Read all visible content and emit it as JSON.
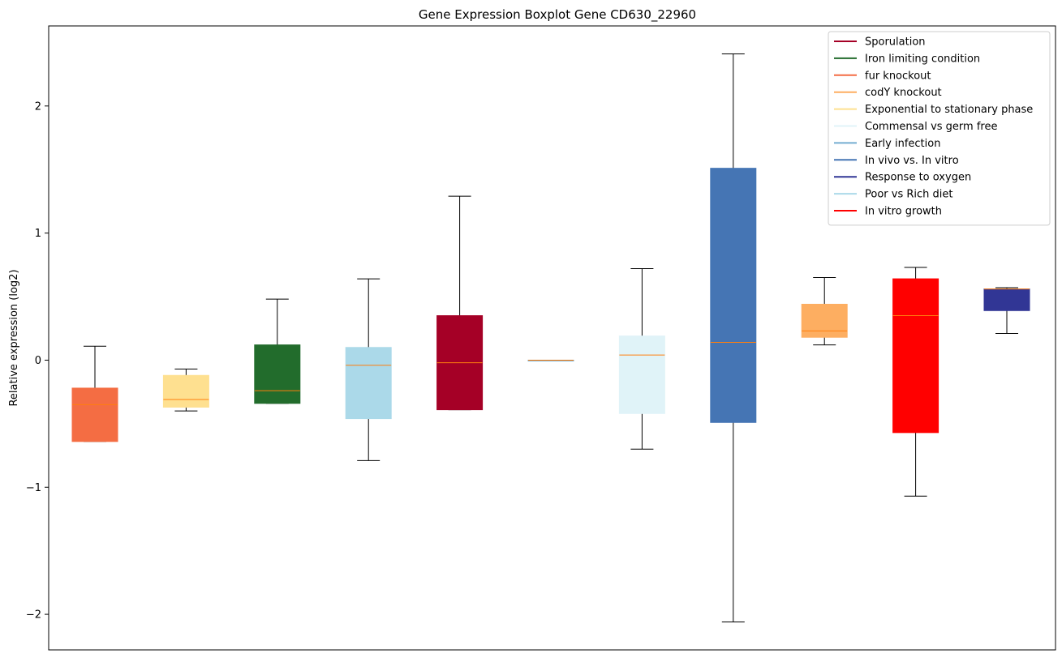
{
  "chart_data": {
    "type": "boxplot",
    "title": "Gene Expression Boxplot Gene CD630_22960",
    "xlabel": "",
    "ylabel": "Relative expression (log2)",
    "ylim": [
      -2.28,
      2.63
    ],
    "yticks": [
      2,
      1,
      0,
      -1,
      -2
    ],
    "ytick_labels": [
      "2",
      "1",
      "0",
      "−1",
      "−2"
    ],
    "median_color": "#ff7f0e",
    "boxes": [
      {
        "condition": "fur knockout",
        "color": "#f46d43",
        "whisker_low": -0.64,
        "q1": -0.64,
        "median": -0.35,
        "q3": -0.22,
        "whisker_high": 0.11
      },
      {
        "condition": "Exponential to stationary phase",
        "color": "#fee090",
        "whisker_low": -0.4,
        "q1": -0.37,
        "median": -0.31,
        "q3": -0.12,
        "whisker_high": -0.07
      },
      {
        "condition": "Iron limiting condition",
        "color": "#226c2c",
        "whisker_low": -0.34,
        "q1": -0.34,
        "median": -0.24,
        "q3": 0.12,
        "whisker_high": 0.48
      },
      {
        "condition": "Poor vs Rich diet",
        "color": "#abd9e9",
        "whisker_low": -0.79,
        "q1": -0.46,
        "median": -0.04,
        "q3": 0.1,
        "whisker_high": 0.64
      },
      {
        "condition": "Sporulation",
        "color": "#a50026",
        "whisker_low": -0.39,
        "q1": -0.39,
        "median": -0.02,
        "q3": 0.35,
        "whisker_high": 1.29
      },
      {
        "condition": "Early infection",
        "color": "#74add1",
        "whisker_low": 0.0,
        "q1": 0.0,
        "median": 0.0,
        "q3": 0.0,
        "whisker_high": 0.0
      },
      {
        "condition": "Commensal vs germ free",
        "color": "#e0f3f8",
        "whisker_low": -0.7,
        "q1": -0.42,
        "median": 0.04,
        "q3": 0.19,
        "whisker_high": 0.72
      },
      {
        "condition": "In vivo vs. In vitro",
        "color": "#4575b4",
        "whisker_low": -2.06,
        "q1": -0.49,
        "median": 0.14,
        "q3": 1.51,
        "whisker_high": 2.41
      },
      {
        "condition": "codY knockout",
        "color": "#fdae61",
        "whisker_low": 0.12,
        "q1": 0.18,
        "median": 0.23,
        "q3": 0.44,
        "whisker_high": 0.65
      },
      {
        "condition": "In vitro growth",
        "color": "#ff0000",
        "whisker_low": -1.07,
        "q1": -0.57,
        "median": 0.35,
        "q3": 0.64,
        "whisker_high": 0.73
      },
      {
        "condition": "Response to oxygen",
        "color": "#313695",
        "whisker_low": 0.21,
        "q1": 0.39,
        "median": 0.56,
        "q3": 0.56,
        "whisker_high": 0.57
      }
    ],
    "legend": {
      "placement": "top-right",
      "entries": [
        {
          "label": "Sporulation",
          "color": "#a50026"
        },
        {
          "label": "Iron limiting condition",
          "color": "#226c2c"
        },
        {
          "label": "fur knockout",
          "color": "#f46d43"
        },
        {
          "label": "codY knockout",
          "color": "#fdae61"
        },
        {
          "label": "Exponential to stationary phase",
          "color": "#fee090"
        },
        {
          "label": "Commensal vs germ free",
          "color": "#e0f3f8"
        },
        {
          "label": "Early infection",
          "color": "#74add1"
        },
        {
          "label": "In vivo vs. In vitro",
          "color": "#4575b4"
        },
        {
          "label": "Response to oxygen",
          "color": "#313695"
        },
        {
          "label": "Poor vs Rich diet",
          "color": "#abd9e9"
        },
        {
          "label": "In vitro growth",
          "color": "#ff0000"
        }
      ]
    }
  }
}
